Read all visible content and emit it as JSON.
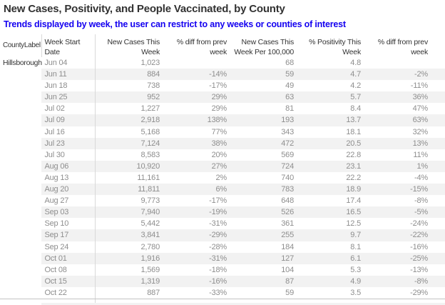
{
  "header": {
    "title": "New Cases, Positivity, and People Vaccinated, by County",
    "subtitle": "Trends displayed by week, the user can restrict to any weeks or counties of interest"
  },
  "colors": {
    "title_text": "#323232",
    "subtitle_blue": "#1400f0",
    "header_text": "#333333",
    "data_text": "#8e8e8e",
    "row_stripe": "#f2f2f2",
    "divider": "#d9d9d9",
    "group_boundary": "#c3c3c3"
  },
  "table": {
    "county_header": "CountyLabel",
    "county_label": "Hillsborough",
    "columns": [
      {
        "id": "date",
        "label": "Week Start\nDate"
      },
      {
        "id": "cases",
        "label": "New Cases This\nWeek"
      },
      {
        "id": "diff",
        "label": "% diff from prev\nweek"
      },
      {
        "id": "per100k",
        "label": "New Cases This\nWeek Per 100,000"
      },
      {
        "id": "pos",
        "label": "% Positivity This\nWeek"
      },
      {
        "id": "posdiff",
        "label": "% diff from prev\nweek"
      }
    ],
    "rows": [
      {
        "date": "Jun 04",
        "cases": "1,023",
        "diff": "",
        "per100k": "68",
        "pos": "4.8",
        "posdiff": ""
      },
      {
        "date": "Jun 11",
        "cases": "884",
        "diff": "-14%",
        "per100k": "59",
        "pos": "4.7",
        "posdiff": "-2%"
      },
      {
        "date": "Jun 18",
        "cases": "738",
        "diff": "-17%",
        "per100k": "49",
        "pos": "4.2",
        "posdiff": "-11%"
      },
      {
        "date": "Jun 25",
        "cases": "952",
        "diff": "29%",
        "per100k": "63",
        "pos": "5.7",
        "posdiff": "36%"
      },
      {
        "date": "Jul 02",
        "cases": "1,227",
        "diff": "29%",
        "per100k": "81",
        "pos": "8.4",
        "posdiff": "47%"
      },
      {
        "date": "Jul 09",
        "cases": "2,918",
        "diff": "138%",
        "per100k": "193",
        "pos": "13.7",
        "posdiff": "63%"
      },
      {
        "date": "Jul 16",
        "cases": "5,168",
        "diff": "77%",
        "per100k": "343",
        "pos": "18.1",
        "posdiff": "32%"
      },
      {
        "date": "Jul 23",
        "cases": "7,124",
        "diff": "38%",
        "per100k": "472",
        "pos": "20.5",
        "posdiff": "13%"
      },
      {
        "date": "Jul 30",
        "cases": "8,583",
        "diff": "20%",
        "per100k": "569",
        "pos": "22.8",
        "posdiff": "11%"
      },
      {
        "date": "Aug 06",
        "cases": "10,920",
        "diff": "27%",
        "per100k": "724",
        "pos": "23.1",
        "posdiff": "1%"
      },
      {
        "date": "Aug 13",
        "cases": "11,161",
        "diff": "2%",
        "per100k": "740",
        "pos": "22.2",
        "posdiff": "-4%"
      },
      {
        "date": "Aug 20",
        "cases": "11,811",
        "diff": "6%",
        "per100k": "783",
        "pos": "18.9",
        "posdiff": "-15%"
      },
      {
        "date": "Aug 27",
        "cases": "9,773",
        "diff": "-17%",
        "per100k": "648",
        "pos": "17.4",
        "posdiff": "-8%"
      },
      {
        "date": "Sep 03",
        "cases": "7,940",
        "diff": "-19%",
        "per100k": "526",
        "pos": "16.5",
        "posdiff": "-5%"
      },
      {
        "date": "Sep 10",
        "cases": "5,442",
        "diff": "-31%",
        "per100k": "361",
        "pos": "12.5",
        "posdiff": "-24%"
      },
      {
        "date": "Sep 17",
        "cases": "3,841",
        "diff": "-29%",
        "per100k": "255",
        "pos": "9.7",
        "posdiff": "-22%"
      },
      {
        "date": "Sep 24",
        "cases": "2,780",
        "diff": "-28%",
        "per100k": "184",
        "pos": "8.1",
        "posdiff": "-16%"
      },
      {
        "date": "Oct 01",
        "cases": "1,916",
        "diff": "-31%",
        "per100k": "127",
        "pos": "6.1",
        "posdiff": "-25%"
      },
      {
        "date": "Oct 08",
        "cases": "1,569",
        "diff": "-18%",
        "per100k": "104",
        "pos": "5.3",
        "posdiff": "-13%"
      },
      {
        "date": "Oct 15",
        "cases": "1,319",
        "diff": "-16%",
        "per100k": "87",
        "pos": "4.9",
        "posdiff": "-8%"
      },
      {
        "date": "Oct 22",
        "cases": "887",
        "diff": "-33%",
        "per100k": "59",
        "pos": "3.5",
        "posdiff": "-29%"
      }
    ]
  }
}
